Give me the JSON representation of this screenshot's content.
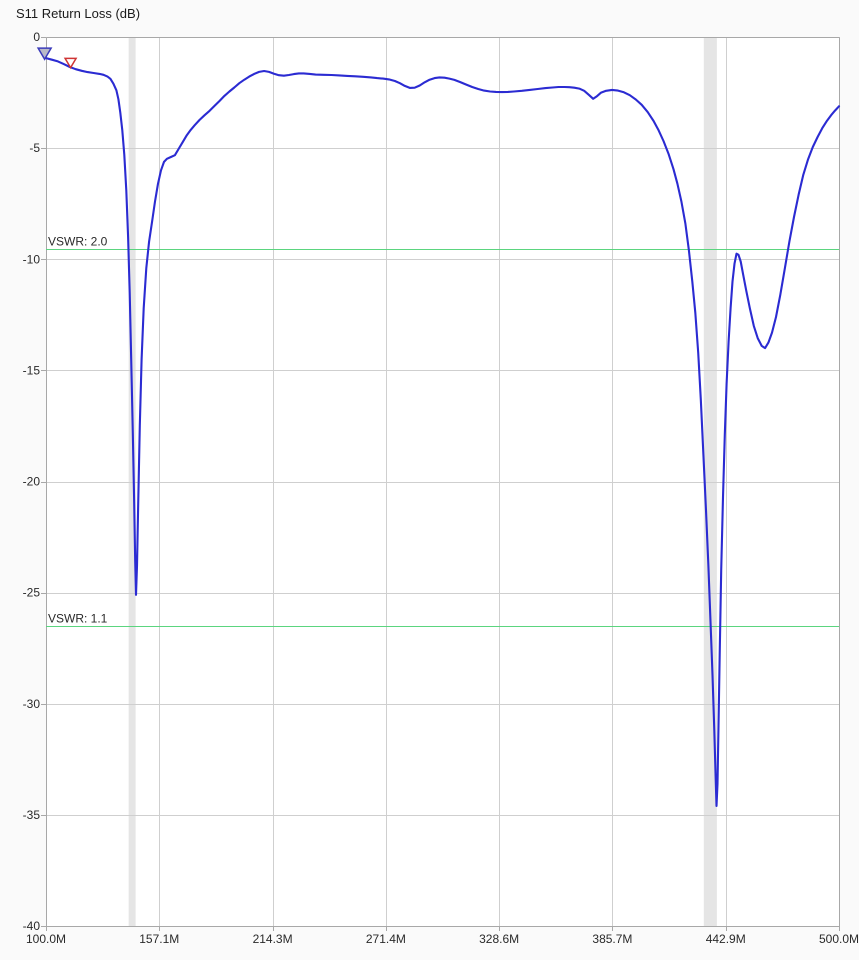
{
  "window": {
    "background": "#fafafa",
    "plot_background": "#ffffff"
  },
  "chart_data": {
    "type": "line",
    "title": "S11 Return Loss (dB)",
    "x_unit": "MHz",
    "y_unit": "dB",
    "xlim": [
      100,
      500
    ],
    "ylim": [
      -40,
      0
    ],
    "grid": true,
    "x_ticks": [
      {
        "value": 100,
        "label": "100.0M"
      },
      {
        "value": 157.14,
        "label": "157.1M"
      },
      {
        "value": 214.29,
        "label": "214.3M"
      },
      {
        "value": 271.43,
        "label": "271.4M"
      },
      {
        "value": 328.57,
        "label": "328.6M"
      },
      {
        "value": 385.71,
        "label": "385.7M"
      },
      {
        "value": 442.86,
        "label": "442.9M"
      },
      {
        "value": 500,
        "label": "500.0M"
      }
    ],
    "y_ticks": [
      {
        "value": 0,
        "label": "0"
      },
      {
        "value": -5,
        "label": "-5"
      },
      {
        "value": -10,
        "label": "-10"
      },
      {
        "value": -15,
        "label": "-15"
      },
      {
        "value": -20,
        "label": "-20"
      },
      {
        "value": -25,
        "label": "-25"
      },
      {
        "value": -30,
        "label": "-30"
      },
      {
        "value": -35,
        "label": "-35"
      },
      {
        "value": -40,
        "label": "-40"
      }
    ],
    "colors": {
      "trace": "#2b2bd2",
      "grid": "#cfcfcf",
      "border": "#a8a8a8",
      "band": "#e5e5e5",
      "vswr": "#5bd57f",
      "tick_text": "#2a2a2a"
    },
    "highlight_bands": [
      {
        "x_start": 141.7,
        "x_end": 145.2
      },
      {
        "x_start": 431.8,
        "x_end": 438.4
      }
    ],
    "reference_lines": [
      {
        "label": "VSWR: 2.0",
        "db": -9.54
      },
      {
        "label": "VSWR: 1.1",
        "db": -26.5
      }
    ],
    "markers": [
      {
        "name": "marker-1-triangle",
        "shape": "triangle-down",
        "x": 99.3,
        "y": -1.0,
        "stroke": "#3b3bbb",
        "fill": "#b9bac8",
        "size": 6.5
      },
      {
        "name": "marker-2-triangle",
        "shape": "triangle-down",
        "x": 112.4,
        "y": -1.38,
        "stroke": "#cf3434",
        "fill": "#ffffff",
        "size": 5.5
      }
    ],
    "series": [
      {
        "name": "S11 Return Loss",
        "points": [
          [
            100,
            -0.95
          ],
          [
            103,
            -1.02
          ],
          [
            106,
            -1.1
          ],
          [
            109,
            -1.22
          ],
          [
            112,
            -1.35
          ],
          [
            115,
            -1.45
          ],
          [
            118,
            -1.52
          ],
          [
            121,
            -1.58
          ],
          [
            124,
            -1.62
          ],
          [
            127,
            -1.66
          ],
          [
            129,
            -1.7
          ],
          [
            131,
            -1.78
          ],
          [
            132.5,
            -1.88
          ],
          [
            134,
            -2.1
          ],
          [
            135.5,
            -2.4
          ],
          [
            136.5,
            -2.8
          ],
          [
            137.5,
            -3.4
          ],
          [
            138.5,
            -4.2
          ],
          [
            139.5,
            -5.3
          ],
          [
            140.5,
            -6.9
          ],
          [
            141.4,
            -9.0
          ],
          [
            142.2,
            -11.5
          ],
          [
            143,
            -14.5
          ],
          [
            143.8,
            -17.8
          ],
          [
            144.5,
            -21
          ],
          [
            145,
            -23.6
          ],
          [
            145.4,
            -25.1
          ],
          [
            145.9,
            -23.8
          ],
          [
            146.5,
            -21
          ],
          [
            147.3,
            -17.5
          ],
          [
            148.2,
            -14.5
          ],
          [
            149.3,
            -12.2
          ],
          [
            150.6,
            -10.4
          ],
          [
            152,
            -9.2
          ],
          [
            153.5,
            -8.3
          ],
          [
            155,
            -7.4
          ],
          [
            156.5,
            -6.6
          ],
          [
            158,
            -6.0
          ],
          [
            159.5,
            -5.62
          ],
          [
            161,
            -5.48
          ],
          [
            163,
            -5.4
          ],
          [
            165,
            -5.32
          ],
          [
            167,
            -5.02
          ],
          [
            169,
            -4.72
          ],
          [
            171,
            -4.42
          ],
          [
            173,
            -4.18
          ],
          [
            175,
            -3.97
          ],
          [
            177.5,
            -3.73
          ],
          [
            180,
            -3.52
          ],
          [
            182.5,
            -3.32
          ],
          [
            185,
            -3.1
          ],
          [
            187.5,
            -2.88
          ],
          [
            190,
            -2.65
          ],
          [
            192.5,
            -2.45
          ],
          [
            195,
            -2.27
          ],
          [
            197.5,
            -2.08
          ],
          [
            200,
            -1.92
          ],
          [
            202.5,
            -1.78
          ],
          [
            205,
            -1.66
          ],
          [
            207.5,
            -1.57
          ],
          [
            210,
            -1.53
          ],
          [
            212.5,
            -1.57
          ],
          [
            215,
            -1.65
          ],
          [
            217.5,
            -1.72
          ],
          [
            220,
            -1.74
          ],
          [
            222.5,
            -1.71
          ],
          [
            225,
            -1.67
          ],
          [
            227.5,
            -1.64
          ],
          [
            230,
            -1.64
          ],
          [
            233,
            -1.66
          ],
          [
            236,
            -1.69
          ],
          [
            240,
            -1.7
          ],
          [
            244,
            -1.71
          ],
          [
            248,
            -1.73
          ],
          [
            252,
            -1.75
          ],
          [
            256,
            -1.77
          ],
          [
            260,
            -1.79
          ],
          [
            264,
            -1.82
          ],
          [
            267,
            -1.85
          ],
          [
            270,
            -1.87
          ],
          [
            273,
            -1.91
          ],
          [
            276,
            -1.98
          ],
          [
            278.5,
            -2.08
          ],
          [
            281,
            -2.2
          ],
          [
            283.5,
            -2.29
          ],
          [
            286,
            -2.28
          ],
          [
            288.5,
            -2.18
          ],
          [
            291,
            -2.04
          ],
          [
            293.5,
            -1.92
          ],
          [
            296,
            -1.85
          ],
          [
            298.5,
            -1.82
          ],
          [
            301,
            -1.83
          ],
          [
            303.5,
            -1.87
          ],
          [
            306,
            -1.93
          ],
          [
            309,
            -2.03
          ],
          [
            312,
            -2.14
          ],
          [
            315,
            -2.25
          ],
          [
            318,
            -2.34
          ],
          [
            321,
            -2.41
          ],
          [
            324,
            -2.45
          ],
          [
            327,
            -2.47
          ],
          [
            330,
            -2.48
          ],
          [
            333,
            -2.47
          ],
          [
            336,
            -2.45
          ],
          [
            340,
            -2.42
          ],
          [
            344,
            -2.38
          ],
          [
            348,
            -2.34
          ],
          [
            352,
            -2.3
          ],
          [
            355.5,
            -2.27
          ],
          [
            358.5,
            -2.25
          ],
          [
            361.5,
            -2.25
          ],
          [
            364,
            -2.26
          ],
          [
            366.5,
            -2.28
          ],
          [
            369,
            -2.32
          ],
          [
            371.5,
            -2.42
          ],
          [
            373.8,
            -2.6
          ],
          [
            376,
            -2.78
          ],
          [
            378,
            -2.66
          ],
          [
            380,
            -2.5
          ],
          [
            382.5,
            -2.42
          ],
          [
            385.5,
            -2.38
          ],
          [
            388.5,
            -2.41
          ],
          [
            391.5,
            -2.49
          ],
          [
            394.5,
            -2.62
          ],
          [
            397.5,
            -2.81
          ],
          [
            400.5,
            -3.05
          ],
          [
            403.5,
            -3.38
          ],
          [
            406.5,
            -3.78
          ],
          [
            409,
            -4.2
          ],
          [
            411.5,
            -4.68
          ],
          [
            414,
            -5.25
          ],
          [
            416.5,
            -5.95
          ],
          [
            418.5,
            -6.6
          ],
          [
            420.5,
            -7.4
          ],
          [
            422.5,
            -8.4
          ],
          [
            424.3,
            -9.6
          ],
          [
            426,
            -11.0
          ],
          [
            427.5,
            -12.4
          ],
          [
            429,
            -14.2
          ],
          [
            430.3,
            -16.3
          ],
          [
            431.6,
            -18.8
          ],
          [
            432.9,
            -21.3
          ],
          [
            434.1,
            -23.8
          ],
          [
            435.2,
            -26.3
          ],
          [
            436.2,
            -28.7
          ],
          [
            437.1,
            -31.2
          ],
          [
            437.8,
            -33.4
          ],
          [
            438.2,
            -34.6
          ],
          [
            438.7,
            -33.6
          ],
          [
            439.2,
            -31
          ],
          [
            439.8,
            -27.8
          ],
          [
            440.6,
            -24
          ],
          [
            441.5,
            -20.7
          ],
          [
            442.4,
            -17.9
          ],
          [
            443.3,
            -15.6
          ],
          [
            444.3,
            -13.7
          ],
          [
            445.3,
            -12.2
          ],
          [
            446.3,
            -11.0
          ],
          [
            447.3,
            -10.2
          ],
          [
            448.3,
            -9.75
          ],
          [
            449.3,
            -9.8
          ],
          [
            450.4,
            -10.1
          ],
          [
            451.7,
            -10.7
          ],
          [
            453.2,
            -11.4
          ],
          [
            455,
            -12.2
          ],
          [
            457,
            -13.0
          ],
          [
            459,
            -13.55
          ],
          [
            461,
            -13.9
          ],
          [
            462.7,
            -14.0
          ],
          [
            464.4,
            -13.75
          ],
          [
            466.2,
            -13.3
          ],
          [
            468.2,
            -12.6
          ],
          [
            470.4,
            -11.6
          ],
          [
            472.7,
            -10.4
          ],
          [
            475,
            -9.2
          ],
          [
            477.3,
            -8.1
          ],
          [
            479.6,
            -7.1
          ],
          [
            482,
            -6.2
          ],
          [
            484.4,
            -5.5
          ],
          [
            486.8,
            -4.95
          ],
          [
            489.2,
            -4.5
          ],
          [
            491.6,
            -4.1
          ],
          [
            494,
            -3.76
          ],
          [
            496,
            -3.52
          ],
          [
            498,
            -3.31
          ],
          [
            500,
            -3.12
          ]
        ]
      }
    ]
  }
}
